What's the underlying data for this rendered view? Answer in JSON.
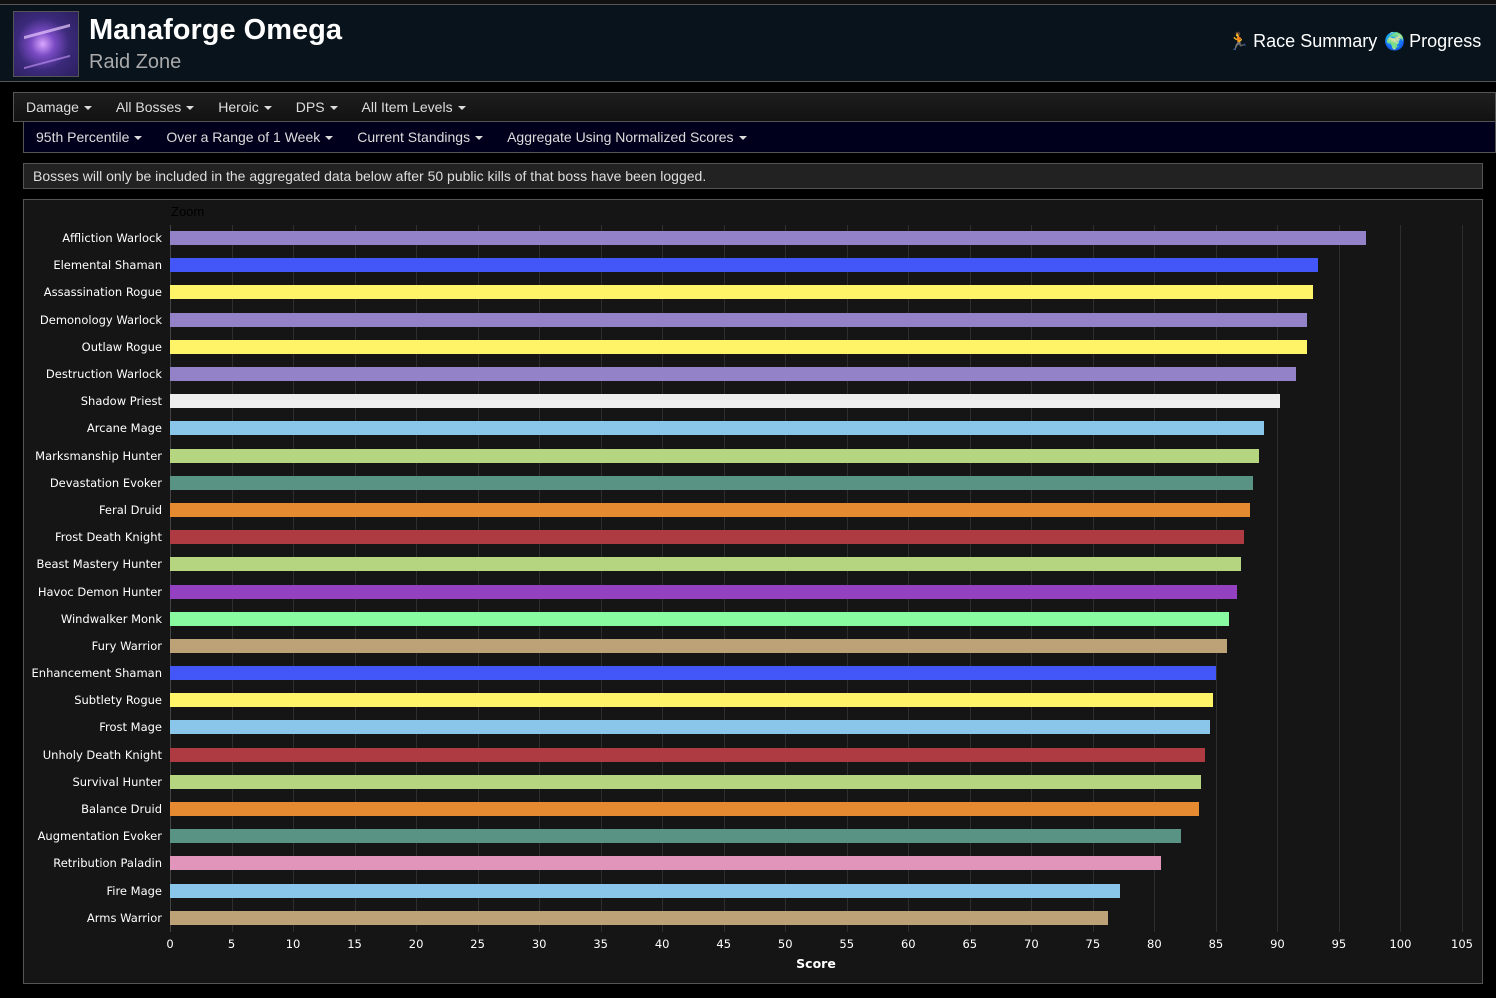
{
  "header": {
    "title": "Manaforge Omega",
    "subtitle": "Raid Zone",
    "nav": [
      {
        "icon": "running-figure-icon",
        "glyph": "🏃",
        "label": "Race Summary"
      },
      {
        "icon": "globe-icon",
        "glyph": "🌍",
        "label": "Progress"
      }
    ]
  },
  "filters_row1": [
    "Damage",
    "All Bosses",
    "Heroic",
    "DPS",
    "All Item Levels"
  ],
  "filters_row2": [
    "95th Percentile",
    "Over a Range of 1 Week",
    "Current Standings",
    "Aggregate Using Normalized Scores"
  ],
  "notice": "Bosses will only be included in the aggregated data below after 50 public kills of that boss have been logged.",
  "chart_zoom_label": "Zoom",
  "chart_data": {
    "type": "bar",
    "orientation": "horizontal",
    "title": "",
    "xlabel": "Score",
    "ylabel": "",
    "xlim": [
      0,
      105
    ],
    "x_ticks": [
      0,
      5,
      10,
      15,
      20,
      25,
      30,
      35,
      40,
      45,
      50,
      55,
      60,
      65,
      70,
      75,
      80,
      85,
      90,
      95,
      100,
      105
    ],
    "grid": true,
    "legend": false,
    "categories": [
      "Affliction Warlock",
      "Elemental Shaman",
      "Assassination Rogue",
      "Demonology Warlock",
      "Outlaw Rogue",
      "Destruction Warlock",
      "Shadow Priest",
      "Arcane Mage",
      "Marksmanship Hunter",
      "Devastation Evoker",
      "Feral Druid",
      "Frost Death Knight",
      "Beast Mastery Hunter",
      "Havoc Demon Hunter",
      "Windwalker Monk",
      "Fury Warrior",
      "Enhancement Shaman",
      "Subtlety Rogue",
      "Frost Mage",
      "Unholy Death Knight",
      "Survival Hunter",
      "Balance Druid",
      "Augmentation Evoker",
      "Retribution Paladin",
      "Fire Mage",
      "Arms Warrior"
    ],
    "values": [
      97.2,
      93.3,
      92.9,
      92.4,
      92.4,
      91.5,
      90.2,
      88.9,
      88.5,
      88.0,
      87.8,
      87.3,
      87.0,
      86.7,
      86.1,
      85.9,
      85.0,
      84.8,
      84.5,
      84.1,
      83.8,
      83.6,
      82.2,
      80.5,
      77.2,
      76.2
    ],
    "colors": [
      "#9482c9",
      "#4357f9",
      "#fff468",
      "#9482c9",
      "#fff468",
      "#9482c9",
      "#eeeeee",
      "#8ac6ea",
      "#b6d581",
      "#589384",
      "#e68a32",
      "#ad3b41",
      "#b6d581",
      "#9340c1",
      "#88fba1",
      "#bea277",
      "#4357f9",
      "#fff468",
      "#8ac6ea",
      "#ad3b41",
      "#b6d581",
      "#e68a32",
      "#589384",
      "#e195bb",
      "#8ac6ea",
      "#bea277"
    ]
  }
}
